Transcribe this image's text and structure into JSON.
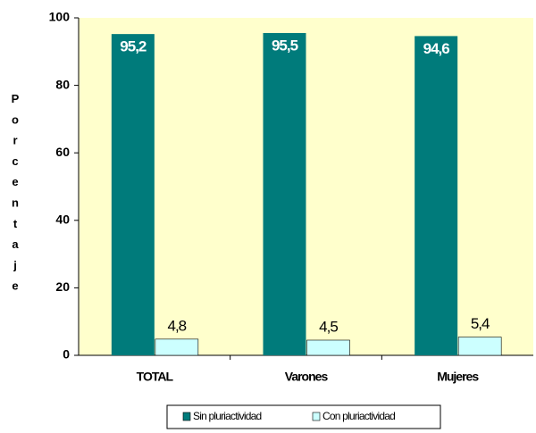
{
  "chart_data": {
    "type": "bar",
    "y_label": "Porcentaje",
    "categories": [
      "TOTAL",
      "Varones",
      "Mujeres"
    ],
    "series": [
      {
        "name": "Sin pluriactividad",
        "color": "#007b7b",
        "values": [
          95.2,
          95.5,
          94.6
        ],
        "value_labels": [
          "95,2",
          "95,5",
          "94,6"
        ]
      },
      {
        "name": "Con pluriactividad",
        "color": "#ccffff",
        "values": [
          4.8,
          4.5,
          5.4
        ],
        "value_labels": [
          "4,8",
          "4,5",
          "5,4"
        ]
      }
    ],
    "ylim": [
      0,
      100
    ],
    "yticks": [
      0,
      20,
      40,
      60,
      80,
      100
    ],
    "grid": false,
    "legend": "bottom"
  }
}
